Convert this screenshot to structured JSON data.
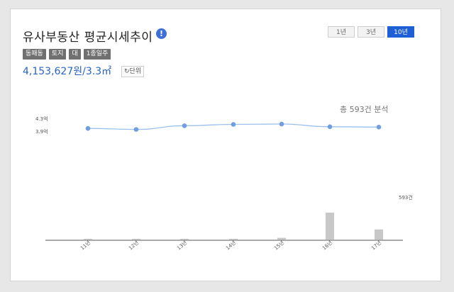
{
  "title": "유사부동산 평균시세추이",
  "info_icon": "info-icon",
  "period_tabs": [
    "1년",
    "3년",
    "10년"
  ],
  "active_period": "10년",
  "tags": [
    "동패동",
    "토지",
    "대",
    "1종일주"
  ],
  "price": "4,153,627원/3.3㎡",
  "unit_button": "단위",
  "total_label": "총 593건 분석",
  "colors": {
    "accent": "#1f5fd6",
    "line": "#9cc0ec",
    "point": "#6f9fe2",
    "bar": "#c8c8c8"
  },
  "chart_data": {
    "type": "line+bar",
    "categories": [
      "11년",
      "12년",
      "13년",
      "14년",
      "15년",
      "16년",
      "17년"
    ],
    "y_tick_labels": [
      "4.3억",
      "3.9억"
    ],
    "bar_max_label": "593건",
    "line_values": [
      3.98,
      3.95,
      4.06,
      4.1,
      4.11,
      4.03,
      4.02
    ],
    "bar_values": [
      0,
      0,
      0,
      0,
      15,
      240,
      90
    ]
  }
}
